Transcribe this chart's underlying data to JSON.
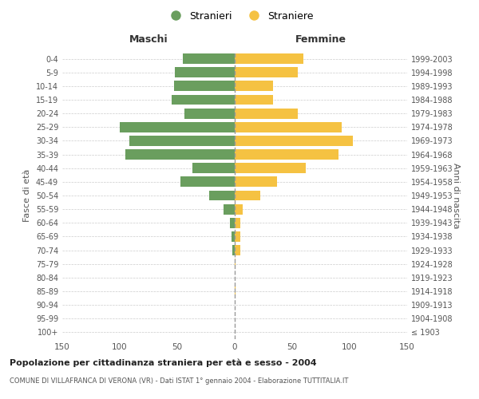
{
  "age_groups": [
    "100+",
    "95-99",
    "90-94",
    "85-89",
    "80-84",
    "75-79",
    "70-74",
    "65-69",
    "60-64",
    "55-59",
    "50-54",
    "45-49",
    "40-44",
    "35-39",
    "30-34",
    "25-29",
    "20-24",
    "15-19",
    "10-14",
    "5-9",
    "0-4"
  ],
  "birth_years": [
    "≤ 1903",
    "1904-1908",
    "1909-1913",
    "1914-1918",
    "1919-1923",
    "1924-1928",
    "1929-1933",
    "1934-1938",
    "1939-1943",
    "1944-1948",
    "1949-1953",
    "1954-1958",
    "1959-1963",
    "1964-1968",
    "1969-1973",
    "1974-1978",
    "1979-1983",
    "1984-1988",
    "1989-1993",
    "1994-1998",
    "1999-2003"
  ],
  "males": [
    0,
    0,
    0,
    0,
    0,
    0,
    2,
    3,
    4,
    10,
    22,
    47,
    37,
    95,
    92,
    100,
    44,
    55,
    53,
    52,
    45
  ],
  "females": [
    0,
    0,
    0,
    1,
    0,
    1,
    5,
    5,
    5,
    7,
    22,
    37,
    62,
    90,
    103,
    93,
    55,
    33,
    33,
    55,
    60
  ],
  "male_color": "#6a9e5e",
  "female_color": "#f5c242",
  "background_color": "#ffffff",
  "grid_color": "#cccccc",
  "title": "Popolazione per cittadinanza straniera per età e sesso - 2004",
  "subtitle": "COMUNE DI VILLAFRANCA DI VERONA (VR) - Dati ISTAT 1° gennaio 2004 - Elaborazione TUTTITALIA.IT",
  "legend_stranieri": "Stranieri",
  "legend_straniere": "Straniere",
  "xlabel_left": "Maschi",
  "xlabel_right": "Femmine",
  "ylabel_left": "Fasce di età",
  "ylabel_right": "Anni di nascita",
  "xlim": 150
}
